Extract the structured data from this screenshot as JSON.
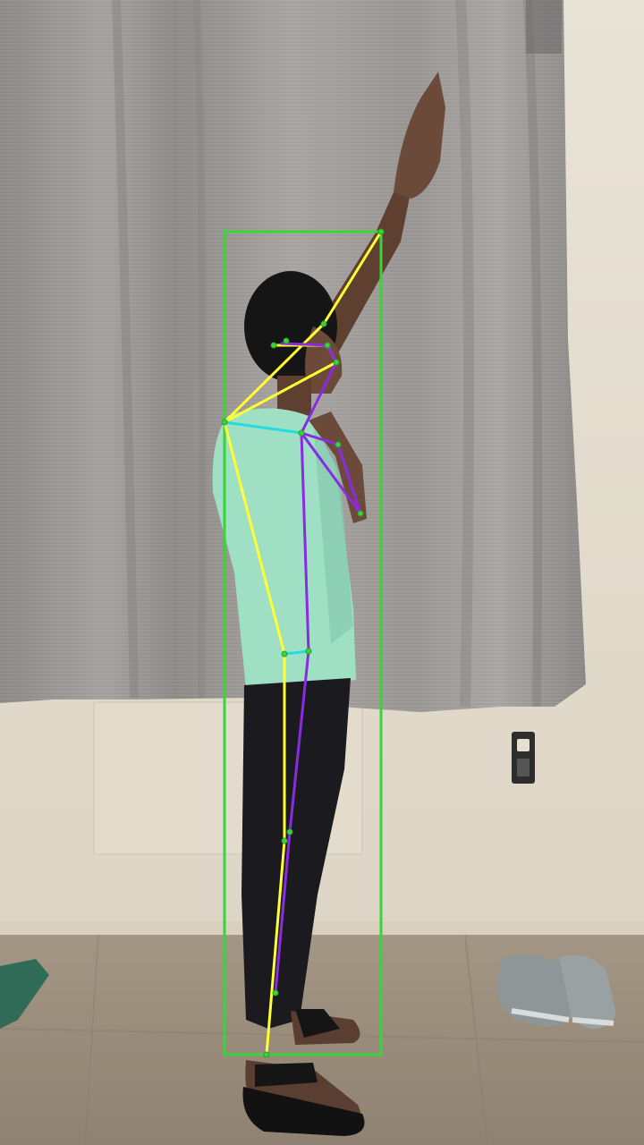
{
  "scene": {
    "description_kind": "pose-estimation frame",
    "colors": {
      "wall": "#e6e0d2",
      "curtain": "#9d9a98",
      "curtain_shadow": "#7f7c7b",
      "floor": "#a89a88",
      "shirt": "#9fe0c5",
      "pants": "#1b1b1f",
      "skin": "#6b4a3a",
      "hair": "#151515",
      "bbox": "#3ad43a",
      "skeleton_left": "#ffff33",
      "skeleton_right": "#8a2be2",
      "skeleton_torso": "#22dddd",
      "keypoint": "#3ad43a"
    },
    "icons": [
      "bounding-box",
      "pose-skeleton",
      "keypoint-marker",
      "shoes",
      "wall-socket"
    ]
  }
}
